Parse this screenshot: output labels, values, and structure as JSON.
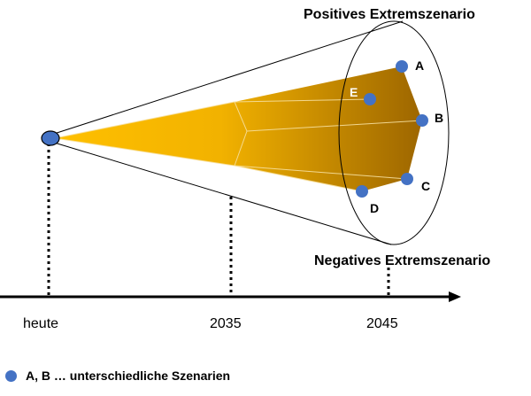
{
  "diagram": {
    "title_top": "Positives Extremszenario",
    "title_bottom": "Negatives Extremszenario",
    "points": [
      {
        "id": "a",
        "label": "A"
      },
      {
        "id": "b",
        "label": "B"
      },
      {
        "id": "c",
        "label": "C"
      },
      {
        "id": "d",
        "label": "D"
      },
      {
        "id": "e",
        "label": "E"
      }
    ],
    "timeline": [
      "heute",
      "2035",
      "2045"
    ],
    "legend": "A, B … unterschiedliche Szenarien",
    "colors": {
      "funnel_light": "#ffc000",
      "funnel_dark": "#9c6500",
      "point": "#4472c4",
      "origin": "#4472c4"
    }
  }
}
